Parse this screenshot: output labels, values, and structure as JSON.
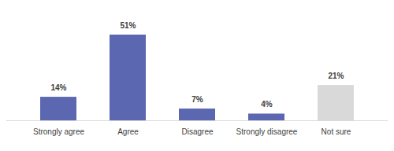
{
  "chart_data": {
    "type": "bar",
    "categories": [
      "Strongly agree",
      "Agree",
      "Disagree",
      "Strongly disagree",
      "Not sure"
    ],
    "values": [
      14,
      51,
      7,
      4,
      21
    ],
    "value_labels": [
      "14%",
      "51%",
      "7%",
      "4%",
      "21%"
    ],
    "colors": [
      "#5b67b0",
      "#5b67b0",
      "#5b67b0",
      "#5b67b0",
      "#d9d9d9"
    ],
    "ylim": [
      0,
      51
    ],
    "data_labels": true,
    "tick_labels": "x",
    "grid": false
  }
}
